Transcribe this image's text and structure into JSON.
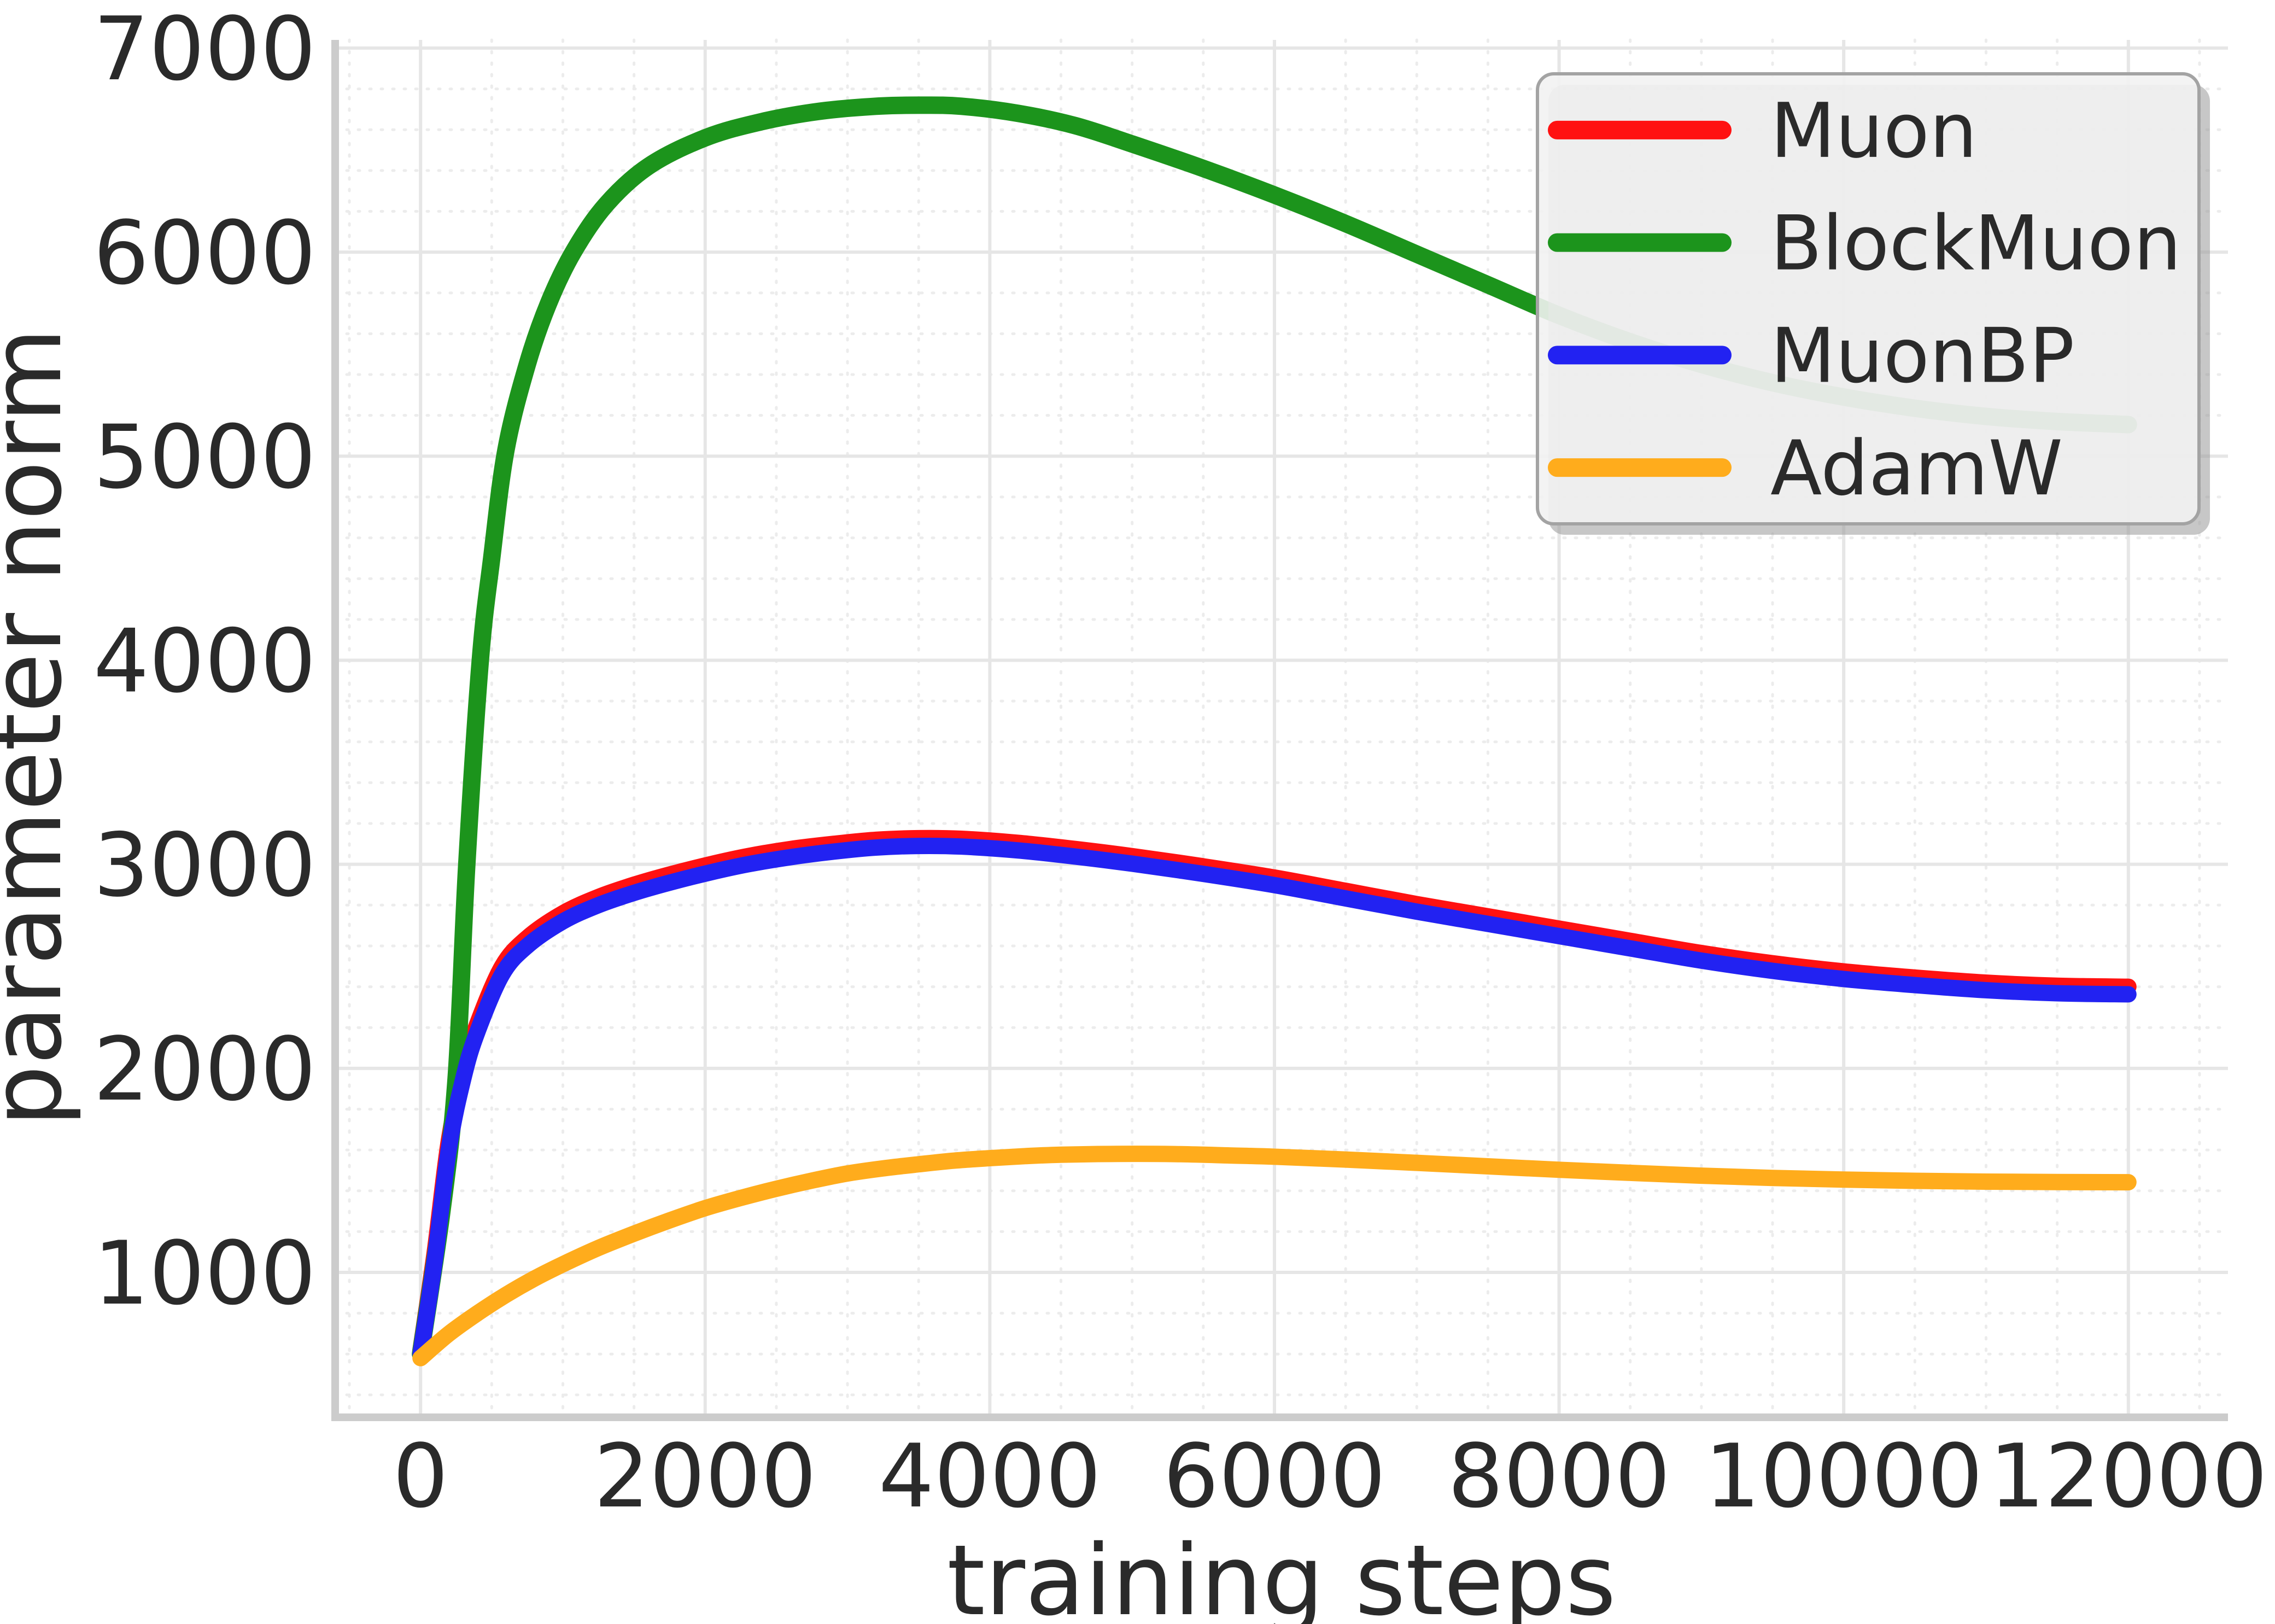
{
  "figure": {
    "xlabel": "training steps",
    "ylabel": "parameter norm"
  },
  "legend": {
    "position": "upper right",
    "items": [
      {
        "label": "Muon",
        "color": "#ff1111"
      },
      {
        "label": "BlockMuon",
        "color": "#1c941c"
      },
      {
        "label": "MuonBP",
        "color": "#2222f2"
      },
      {
        "label": "AdamW",
        "color": "#ffac1c"
      }
    ]
  },
  "colors": {
    "background": "#ffffff",
    "spine": "#cccccc",
    "grid_major": "#e6e6e6",
    "grid_minor": "#ececec",
    "text": "#2a2a2a",
    "legend_bg": "#f2f2f2",
    "legend_border": "#a3a3a3"
  },
  "chart_data": {
    "type": "line",
    "title": "",
    "xlabel": "training steps",
    "ylabel": "parameter norm",
    "xlim": [
      -600,
      12700
    ],
    "ylim": [
      290,
      7040
    ],
    "xticks": [
      0,
      2000,
      4000,
      6000,
      8000,
      10000,
      12000
    ],
    "yticks": [
      1000,
      2000,
      3000,
      4000,
      5000,
      6000,
      7000
    ],
    "minor_x_step": 500,
    "minor_y_step": 200,
    "grid": true,
    "legend_position": "upper right",
    "series": [
      {
        "name": "Muon",
        "color": "#ff1111",
        "linewidth": 30,
        "x": [
          0,
          100,
          200,
          304,
          400,
          573,
          750,
          1000,
          1250,
          1500,
          1750,
          2035,
          2300,
          2600,
          2900,
          3200,
          3500,
          3800,
          4200,
          4600,
          5000,
          5500,
          6000,
          6500,
          7000,
          7500,
          8000,
          8500,
          9000,
          9500,
          10000,
          10500,
          11000,
          11500,
          12000
        ],
        "y": [
          620,
          1100,
          1650,
          2000,
          2220,
          2500,
          2640,
          2760,
          2840,
          2900,
          2950,
          3000,
          3040,
          3075,
          3100,
          3120,
          3128,
          3125,
          3105,
          3075,
          3040,
          2990,
          2935,
          2870,
          2805,
          2745,
          2685,
          2625,
          2565,
          2515,
          2475,
          2445,
          2420,
          2405,
          2400
        ]
      },
      {
        "name": "BlockMuon",
        "color": "#1c941c",
        "linewidth": 32,
        "x": [
          0,
          150,
          250,
          325,
          420,
          500,
          600,
          750,
          900,
          1073,
          1300,
          1600,
          2000,
          2400,
          2800,
          3200,
          3500,
          3800,
          4200,
          4600,
          5000,
          5500,
          6000,
          6500,
          7000,
          7500,
          8000,
          8500,
          9000,
          9500,
          10000,
          10500,
          11000,
          11500,
          12000
        ],
        "y": [
          600,
          1300,
          1950,
          3000,
          4000,
          4500,
          5030,
          5450,
          5750,
          6000,
          6230,
          6420,
          6560,
          6640,
          6690,
          6715,
          6720,
          6715,
          6680,
          6620,
          6530,
          6410,
          6280,
          6140,
          5990,
          5840,
          5690,
          5560,
          5450,
          5360,
          5290,
          5235,
          5195,
          5170,
          5155
        ]
      },
      {
        "name": "MuonBP",
        "color": "#2222f2",
        "linewidth": 30,
        "x": [
          0,
          100,
          200,
          304,
          400,
          573,
          750,
          1000,
          1250,
          1500,
          1750,
          2035,
          2300,
          2600,
          2900,
          3200,
          3500,
          3800,
          4200,
          4600,
          5000,
          5500,
          6000,
          6500,
          7000,
          7500,
          8000,
          8500,
          9000,
          9500,
          10000,
          10500,
          11000,
          11500,
          12000
        ],
        "y": [
          600,
          1060,
          1610,
          1960,
          2180,
          2460,
          2600,
          2720,
          2800,
          2860,
          2910,
          2960,
          3000,
          3035,
          3062,
          3082,
          3090,
          3087,
          3068,
          3038,
          3003,
          2953,
          2898,
          2833,
          2768,
          2708,
          2648,
          2588,
          2528,
          2478,
          2438,
          2408,
          2383,
          2368,
          2363
        ]
      },
      {
        "name": "AdamW",
        "color": "#ffac1c",
        "linewidth": 30,
        "x": [
          0,
          200,
          400,
          600,
          800,
          1000,
          1250,
          1500,
          1750,
          2000,
          2250,
          2500,
          2750,
          3000,
          3250,
          3500,
          3750,
          4000,
          4250,
          4500,
          4900,
          5300,
          5700,
          6000,
          6500,
          7000,
          7500,
          8000,
          8500,
          9000,
          9500,
          10000,
          10500,
          11000,
          11500,
          12000
        ],
        "y": [
          580,
          700,
          800,
          890,
          970,
          1040,
          1120,
          1190,
          1255,
          1315,
          1365,
          1410,
          1450,
          1485,
          1510,
          1530,
          1548,
          1560,
          1570,
          1577,
          1581,
          1580,
          1573,
          1567,
          1553,
          1537,
          1520,
          1503,
          1488,
          1474,
          1463,
          1455,
          1449,
          1445,
          1443,
          1442
        ]
      }
    ]
  }
}
